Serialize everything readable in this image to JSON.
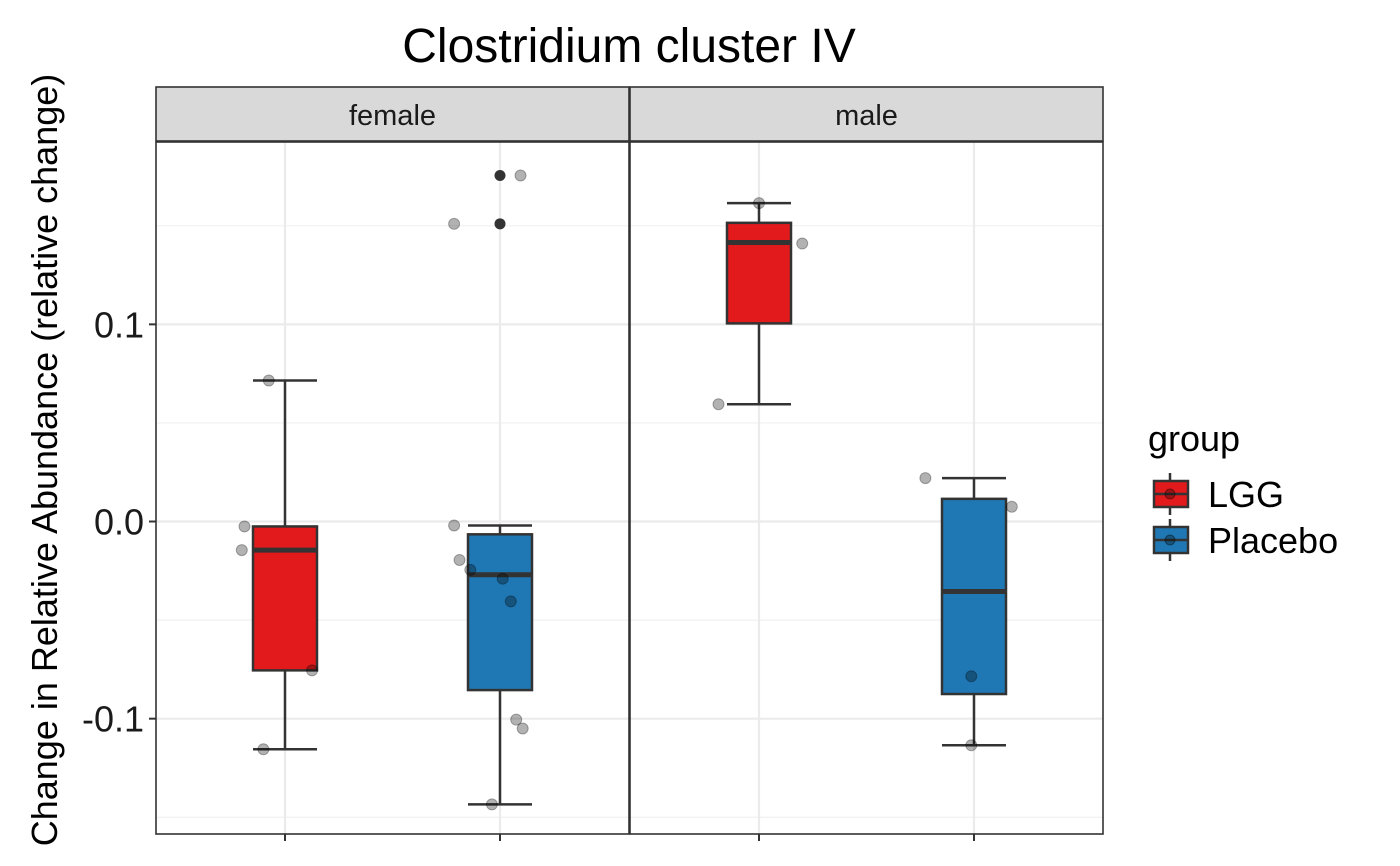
{
  "chart_data": {
    "type": "box",
    "title": "Clostridium cluster IV",
    "ylabel": "Change in Relative Abundance (relative change)",
    "xlabel": "",
    "ylim": [
      -0.1585,
      0.1925
    ],
    "y_ticks": [
      -0.1,
      0.0,
      0.1
    ],
    "y_tick_labels": [
      "-0.1",
      "0.0",
      "0.1"
    ],
    "grid": true,
    "legend": {
      "title": "group",
      "position": "right",
      "entries": [
        {
          "label": "LGG",
          "color": "#E31A1C"
        },
        {
          "label": "Placebo",
          "color": "#1F78B4"
        }
      ]
    },
    "groups": [
      "LGG",
      "Placebo"
    ],
    "colors": {
      "LGG": "#E31A1C",
      "Placebo": "#1F78B4"
    },
    "panels": [
      {
        "label": "female",
        "boxes": [
          {
            "group": "LGG",
            "whisker_low": -0.1155,
            "q1": -0.0755,
            "median": -0.0145,
            "q3": -0.0025,
            "whisker_high": 0.0715,
            "outliers": []
          },
          {
            "group": "Placebo",
            "whisker_low": -0.1435,
            "q1": -0.0855,
            "median": -0.027,
            "q3": -0.0065,
            "whisker_high": -0.002,
            "outliers": [
              0.151,
              0.1755
            ]
          }
        ],
        "points": [
          {
            "group": "LGG",
            "jitter": -0.3,
            "y": 0.0715
          },
          {
            "group": "LGG",
            "jitter": -0.75,
            "y": -0.0025
          },
          {
            "group": "LGG",
            "jitter": -0.8,
            "y": -0.0145
          },
          {
            "group": "LGG",
            "jitter": 0.5,
            "y": -0.0755
          },
          {
            "group": "LGG",
            "jitter": -0.4,
            "y": -0.1155
          },
          {
            "group": "Placebo",
            "jitter": -0.85,
            "y": 0.151
          },
          {
            "group": "Placebo",
            "jitter": 0.38,
            "y": 0.1755
          },
          {
            "group": "Placebo",
            "jitter": -0.85,
            "y": -0.002
          },
          {
            "group": "Placebo",
            "jitter": -0.75,
            "y": -0.0195
          },
          {
            "group": "Placebo",
            "jitter": -0.55,
            "y": -0.0245
          },
          {
            "group": "Placebo",
            "jitter": 0.05,
            "y": -0.029
          },
          {
            "group": "Placebo",
            "jitter": 0.2,
            "y": -0.0405
          },
          {
            "group": "Placebo",
            "jitter": 0.3,
            "y": -0.1005
          },
          {
            "group": "Placebo",
            "jitter": 0.42,
            "y": -0.105
          },
          {
            "group": "Placebo",
            "jitter": -0.15,
            "y": -0.1435
          }
        ]
      },
      {
        "label": "male",
        "boxes": [
          {
            "group": "LGG",
            "whisker_low": 0.0595,
            "q1": 0.1005,
            "median": 0.1415,
            "q3": 0.1515,
            "whisker_high": 0.1615,
            "outliers": []
          },
          {
            "group": "Placebo",
            "whisker_low": -0.1135,
            "q1": -0.0875,
            "median": -0.0355,
            "q3": 0.0115,
            "whisker_high": 0.022,
            "outliers": []
          }
        ],
        "points": [
          {
            "group": "LGG",
            "jitter": 0.0,
            "y": 0.1615
          },
          {
            "group": "LGG",
            "jitter": 0.8,
            "y": 0.141
          },
          {
            "group": "LGG",
            "jitter": -0.75,
            "y": 0.0595
          },
          {
            "group": "Placebo",
            "jitter": -0.9,
            "y": 0.022
          },
          {
            "group": "Placebo",
            "jitter": 0.7,
            "y": 0.0075
          },
          {
            "group": "Placebo",
            "jitter": -0.05,
            "y": -0.0785
          },
          {
            "group": "Placebo",
            "jitter": -0.05,
            "y": -0.1135
          }
        ]
      }
    ]
  }
}
